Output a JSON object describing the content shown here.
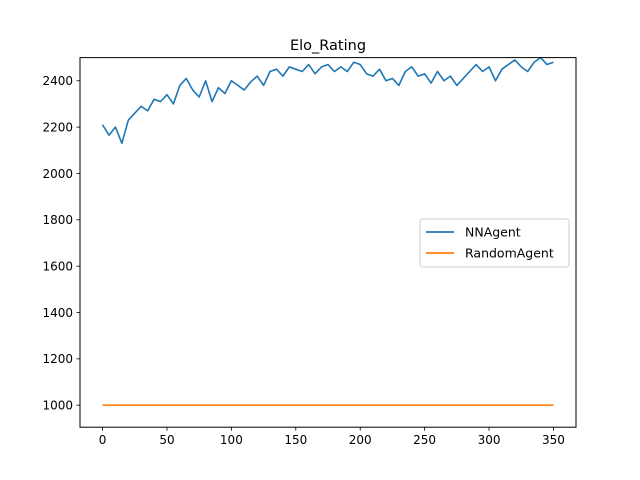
{
  "chart_data": {
    "type": "line",
    "title": "Elo_Rating",
    "xlabel": "",
    "ylabel": "",
    "xlim": [
      -17.5,
      367.5
    ],
    "ylim": [
      905,
      2500
    ],
    "xticks": [
      0,
      50,
      100,
      150,
      200,
      250,
      300,
      350
    ],
    "yticks": [
      1000,
      1200,
      1400,
      1600,
      1800,
      2000,
      2200,
      2400
    ],
    "legend_position": "center-right",
    "grid": false,
    "series": [
      {
        "name": "NNAgent",
        "color": "#1f77b4",
        "x": [
          0,
          5,
          10,
          15,
          20,
          25,
          30,
          35,
          40,
          45,
          50,
          55,
          60,
          65,
          70,
          75,
          80,
          85,
          90,
          95,
          100,
          105,
          110,
          115,
          120,
          125,
          130,
          135,
          140,
          145,
          150,
          155,
          160,
          165,
          170,
          175,
          180,
          185,
          190,
          195,
          200,
          205,
          210,
          215,
          220,
          225,
          230,
          235,
          240,
          245,
          250,
          255,
          260,
          265,
          270,
          275,
          280,
          285,
          290,
          295,
          300,
          305,
          310,
          315,
          320,
          325,
          330,
          335,
          340,
          345,
          350
        ],
        "values": [
          2210,
          2165,
          2200,
          2130,
          2230,
          2260,
          2290,
          2270,
          2320,
          2310,
          2340,
          2300,
          2380,
          2410,
          2360,
          2330,
          2400,
          2310,
          2370,
          2345,
          2400,
          2380,
          2360,
          2395,
          2420,
          2380,
          2440,
          2450,
          2420,
          2460,
          2450,
          2440,
          2470,
          2430,
          2460,
          2470,
          2440,
          2460,
          2440,
          2480,
          2470,
          2430,
          2420,
          2450,
          2400,
          2410,
          2380,
          2440,
          2460,
          2420,
          2430,
          2390,
          2440,
          2400,
          2420,
          2380,
          2410,
          2440,
          2470,
          2440,
          2460,
          2400,
          2450,
          2470,
          2490,
          2460,
          2440,
          2480,
          2500,
          2470,
          2480
        ]
      },
      {
        "name": "RandomAgent",
        "color": "#ff7f0e",
        "x": [
          0,
          350
        ],
        "values": [
          1000,
          1000
        ]
      }
    ]
  }
}
